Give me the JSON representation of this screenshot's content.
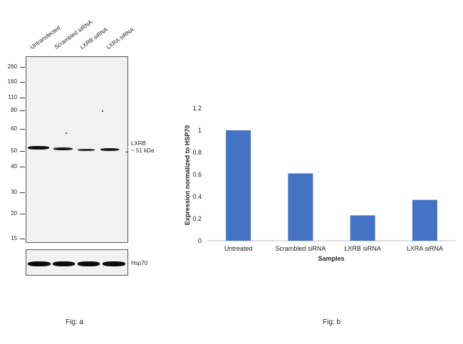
{
  "figure_a": {
    "lanes": [
      "Untransfected",
      "Scrambled siRNA",
      "LXRB siRNA",
      "LXRA siRNA"
    ],
    "mw_markers": [
      "260",
      "160",
      "110",
      "80",
      "60",
      "50",
      "40",
      "30",
      "20",
      "15"
    ],
    "target_label_line1": "LXRB",
    "target_label_line2": "~ 51 kDa",
    "loading_control_label": "Hsp70",
    "caption": "Fig: a"
  },
  "figure_b": {
    "caption": "Fig: b"
  },
  "chart_data": {
    "type": "bar",
    "categories": [
      "Untreated",
      "Scrambled siRNA",
      "LXRB siRNA",
      "LXRA siRNA"
    ],
    "values": [
      1.0,
      0.61,
      0.23,
      0.37
    ],
    "title": "",
    "xlabel": "Samples",
    "ylabel": "Expression normalized to HSP70",
    "ylim": [
      0,
      1.2
    ],
    "yticks": [
      "0",
      "0.2",
      "0.4",
      "0.6",
      "0.8",
      "1",
      "1.2"
    ],
    "bar_color": "#4472c4",
    "grid": false,
    "legend": "none"
  }
}
